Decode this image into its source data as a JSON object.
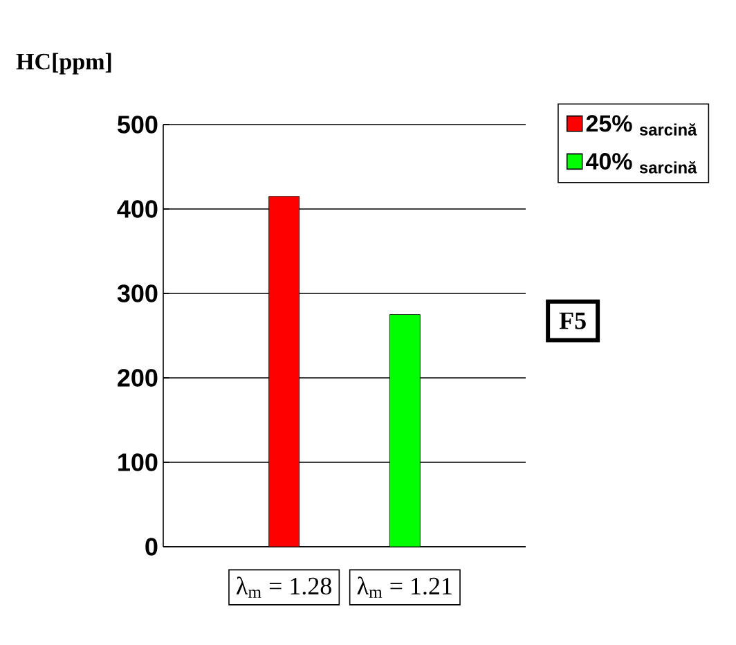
{
  "chart_data": {
    "type": "bar",
    "title": "HC[ppm]",
    "categories": [
      "λ$_{m}$ = 1.28",
      "λ$_{m}$ = 1.21"
    ],
    "series": [
      {
        "name": "25% $_{sarcină}$",
        "color": "#ff0000",
        "values": [
          415,
          null
        ]
      },
      {
        "name": "40% $_{sarcină}$",
        "color": "#00ff00",
        "values": [
          null,
          275
        ]
      }
    ],
    "ylim": [
      0,
      500
    ],
    "yticks": [
      0,
      100,
      200,
      300,
      400,
      500
    ],
    "grid": "y",
    "legend": "top right",
    "annotations": [
      "F5"
    ]
  }
}
